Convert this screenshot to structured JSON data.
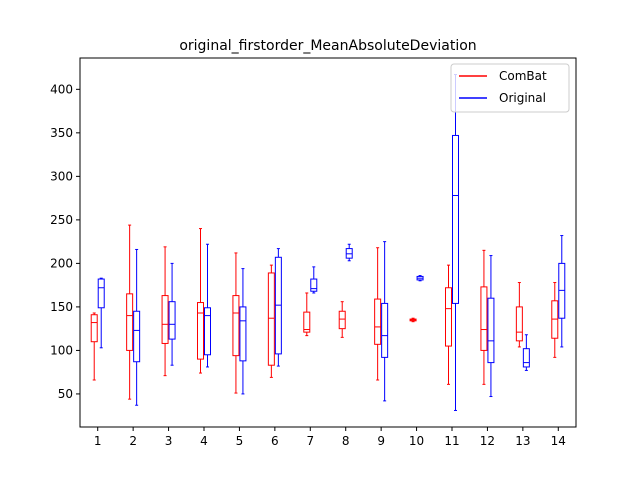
{
  "chart_data": {
    "type": "box",
    "title": "original_firstorder_MeanAbsoluteDeviation",
    "xlabel": "",
    "ylabel": "",
    "categories": [
      "1",
      "2",
      "3",
      "4",
      "5",
      "6",
      "7",
      "8",
      "9",
      "10",
      "11",
      "12",
      "13",
      "14"
    ],
    "yticks": [
      "50",
      "100",
      "150",
      "200",
      "250",
      "300",
      "350",
      "400"
    ],
    "ylim": [
      12,
      436
    ],
    "grid": false,
    "legend_position": "top-right",
    "series": [
      {
        "name": "ComBat",
        "color": "#ff0000",
        "boxes": [
          {
            "whislo": 66,
            "q1": 110,
            "med": 132,
            "q3": 141,
            "whishi": 143
          },
          {
            "whislo": 44,
            "q1": 100,
            "med": 140,
            "q3": 165,
            "whishi": 244
          },
          {
            "whislo": 71,
            "q1": 108,
            "med": 130,
            "q3": 163,
            "whishi": 219
          },
          {
            "whislo": 74,
            "q1": 90,
            "med": 143,
            "q3": 155,
            "whishi": 240
          },
          {
            "whislo": 51,
            "q1": 94,
            "med": 143,
            "q3": 163,
            "whishi": 212
          },
          {
            "whislo": 69,
            "q1": 83,
            "med": 137,
            "q3": 189,
            "whishi": 198
          },
          {
            "whislo": 117,
            "q1": 121,
            "med": 124,
            "q3": 144,
            "whishi": 166
          },
          {
            "whislo": 115,
            "q1": 125,
            "med": 136,
            "q3": 145,
            "whishi": 156
          },
          {
            "whislo": 66,
            "q1": 107,
            "med": 127,
            "q3": 159,
            "whishi": 218
          },
          {
            "whislo": 133,
            "q1": 134,
            "med": 135,
            "q3": 136,
            "whishi": 137
          },
          {
            "whislo": 61,
            "q1": 105,
            "med": 148,
            "q3": 172,
            "whishi": 198
          },
          {
            "whislo": 61,
            "q1": 100,
            "med": 124,
            "q3": 173,
            "whishi": 215
          },
          {
            "whislo": 104,
            "q1": 111,
            "med": 121,
            "q3": 150,
            "whishi": 178
          },
          {
            "whislo": 92,
            "q1": 114,
            "med": 136,
            "q3": 157,
            "whishi": 178
          }
        ]
      },
      {
        "name": "Original",
        "color": "#0000ff",
        "boxes": [
          {
            "whislo": 103,
            "q1": 149,
            "med": 172,
            "q3": 182,
            "whishi": 183
          },
          {
            "whislo": 37,
            "q1": 87,
            "med": 123,
            "q3": 145,
            "whishi": 216
          },
          {
            "whislo": 83,
            "q1": 113,
            "med": 130,
            "q3": 156,
            "whishi": 200
          },
          {
            "whislo": 81,
            "q1": 95,
            "med": 140,
            "q3": 149,
            "whishi": 222
          },
          {
            "whislo": 50,
            "q1": 88,
            "med": 134,
            "q3": 150,
            "whishi": 194
          },
          {
            "whislo": 82,
            "q1": 96,
            "med": 152,
            "q3": 207,
            "whishi": 217
          },
          {
            "whislo": 166,
            "q1": 168,
            "med": 171,
            "q3": 182,
            "whishi": 196
          },
          {
            "whislo": 203,
            "q1": 206,
            "med": 211,
            "q3": 217,
            "whishi": 222
          },
          {
            "whislo": 42,
            "q1": 92,
            "med": 117,
            "q3": 154,
            "whishi": 225
          },
          {
            "whislo": 180,
            "q1": 181,
            "med": 183,
            "q3": 185,
            "whishi": 186
          },
          {
            "whislo": 31,
            "q1": 154,
            "med": 278,
            "q3": 347,
            "whishi": 417
          },
          {
            "whislo": 47,
            "q1": 86,
            "med": 111,
            "q3": 160,
            "whishi": 209
          },
          {
            "whislo": 77,
            "q1": 81,
            "med": 86,
            "q3": 102,
            "whishi": 118
          },
          {
            "whislo": 104,
            "q1": 137,
            "med": 169,
            "q3": 200,
            "whishi": 232
          }
        ]
      }
    ]
  }
}
